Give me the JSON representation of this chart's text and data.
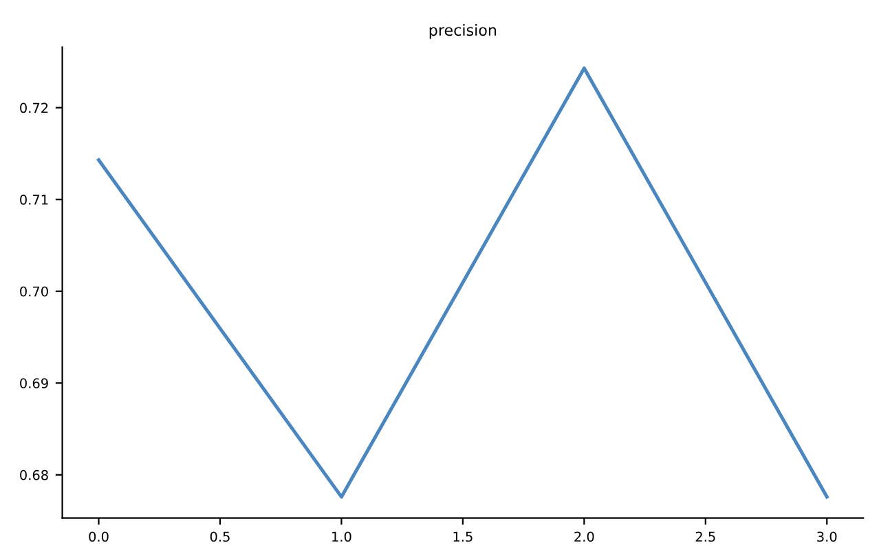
{
  "chart_data": {
    "type": "line",
    "title": "precision",
    "x": [
      0,
      1,
      2,
      3
    ],
    "series": [
      {
        "color": "#4a86c0",
        "values": [
          0.7143,
          0.6776,
          0.7243,
          0.6776
        ]
      }
    ],
    "xlim": [
      -0.15,
      3.15
    ],
    "xticks": [
      {
        "value": 0,
        "label": "0.0"
      },
      {
        "value": 0.5,
        "label": "0.5"
      },
      {
        "value": 1,
        "label": "1.0"
      },
      {
        "value": 1.5,
        "label": "1.5"
      },
      {
        "value": 2,
        "label": "2.0"
      },
      {
        "value": 2.5,
        "label": "2.5"
      },
      {
        "value": 3,
        "label": "3.0"
      }
    ],
    "ylim": [
      0.6753,
      0.7266
    ],
    "yticks": [
      {
        "value": 0.68,
        "label": "0.68"
      },
      {
        "value": 0.69,
        "label": "0.69"
      },
      {
        "value": 0.7,
        "label": "0.70"
      },
      {
        "value": 0.71,
        "label": "0.71"
      },
      {
        "value": 0.72,
        "label": "0.72"
      }
    ],
    "grid": false,
    "legend": false
  }
}
